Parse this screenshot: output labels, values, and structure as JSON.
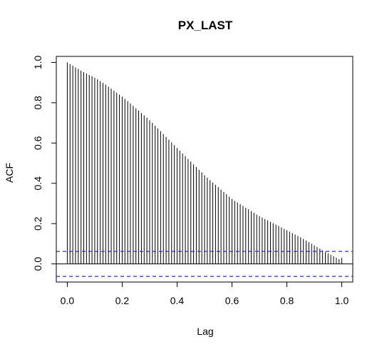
{
  "chart_data": {
    "type": "bar",
    "title": "PX_LAST",
    "xlabel": "Lag",
    "ylabel": "ACF",
    "xlim": [
      -0.04,
      1.04
    ],
    "ylim": [
      -0.09,
      1.03
    ],
    "xticks": [
      0.0,
      0.2,
      0.4,
      0.6,
      0.8,
      1.0
    ],
    "xtick_labels": [
      "0.0",
      "0.2",
      "0.4",
      "0.6",
      "0.8",
      "1.0"
    ],
    "yticks": [
      0.0,
      0.2,
      0.4,
      0.6,
      0.8,
      1.0
    ],
    "ytick_labels": [
      "0.0",
      "0.2",
      "0.4",
      "0.6",
      "0.8",
      "1.0"
    ],
    "lag_step": 0.01,
    "acf": [
      1.0,
      0.992,
      0.984,
      0.976,
      0.968,
      0.96,
      0.952,
      0.945,
      0.938,
      0.931,
      0.924,
      0.916,
      0.908,
      0.899,
      0.89,
      0.88,
      0.87,
      0.86,
      0.85,
      0.84,
      0.83,
      0.819,
      0.808,
      0.796,
      0.785,
      0.773,
      0.761,
      0.749,
      0.737,
      0.725,
      0.713,
      0.7,
      0.686,
      0.672,
      0.659,
      0.645,
      0.631,
      0.617,
      0.603,
      0.589,
      0.575,
      0.562,
      0.548,
      0.535,
      0.521,
      0.508,
      0.494,
      0.481,
      0.467,
      0.454,
      0.44,
      0.428,
      0.416,
      0.404,
      0.393,
      0.381,
      0.369,
      0.357,
      0.346,
      0.334,
      0.322,
      0.313,
      0.305,
      0.296,
      0.288,
      0.279,
      0.271,
      0.262,
      0.254,
      0.245,
      0.237,
      0.23,
      0.223,
      0.216,
      0.209,
      0.202,
      0.195,
      0.188,
      0.181,
      0.174,
      0.167,
      0.16,
      0.153,
      0.146,
      0.139,
      0.132,
      0.124,
      0.116,
      0.108,
      0.1,
      0.092,
      0.084,
      0.076,
      0.068,
      0.06,
      0.052,
      0.045,
      0.038,
      0.031,
      0.024,
      0.03
    ],
    "confidence_bound": 0.062,
    "colors": {
      "bars": "#000000",
      "zero_line": "#000000",
      "confidence_lines": "#2b2bd6",
      "frame": "#000000"
    },
    "grid": false
  }
}
